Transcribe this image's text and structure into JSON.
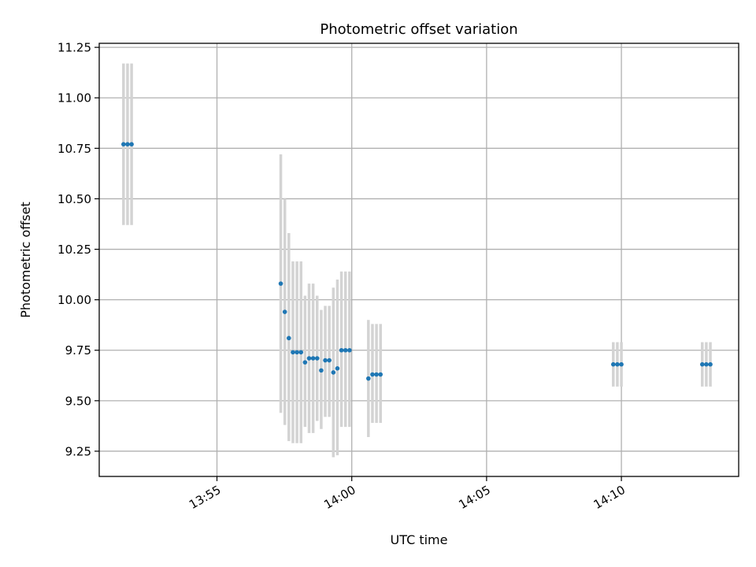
{
  "chart_data": {
    "type": "scatter",
    "title": "Photometric offset variation",
    "xlabel": "UTC time",
    "ylabel": "Photometric offset",
    "x_ticks": [
      "13:55",
      "14:00",
      "14:05",
      "14:10"
    ],
    "y_ticks": [
      "9.25",
      "9.50",
      "9.75",
      "10.00",
      "10.25",
      "10.50",
      "10.75",
      "11.00",
      "11.25"
    ],
    "xlim": [
      "13:50:38",
      "14:14:21"
    ],
    "ylim": [
      9.125,
      11.27
    ],
    "grid": true,
    "colors": {
      "point": "#1f77b4",
      "errorbar": "#d3d3d3",
      "grid": "#b0b0b0"
    },
    "series": [
      {
        "points": [
          {
            "x": "13:51:32",
            "y": 10.77,
            "err_low": 10.37,
            "err_high": 11.17
          },
          {
            "x": "13:51:41",
            "y": 10.77,
            "err_low": 10.37,
            "err_high": 11.17
          },
          {
            "x": "13:51:50",
            "y": 10.77,
            "err_low": 10.37,
            "err_high": 11.17
          },
          {
            "x": "13:57:22",
            "y": 10.08,
            "err_low": 9.44,
            "err_high": 10.72
          },
          {
            "x": "13:57:31",
            "y": 9.94,
            "err_low": 9.38,
            "err_high": 10.5
          },
          {
            "x": "13:57:40",
            "y": 9.81,
            "err_low": 9.3,
            "err_high": 10.33
          },
          {
            "x": "13:57:49",
            "y": 9.74,
            "err_low": 9.29,
            "err_high": 10.19
          },
          {
            "x": "13:57:58",
            "y": 9.74,
            "err_low": 9.29,
            "err_high": 10.19
          },
          {
            "x": "13:58:07",
            "y": 9.74,
            "err_low": 9.29,
            "err_high": 10.19
          },
          {
            "x": "13:58:16",
            "y": 9.69,
            "err_low": 9.37,
            "err_high": 10.02
          },
          {
            "x": "13:58:25",
            "y": 9.71,
            "err_low": 9.34,
            "err_high": 10.08
          },
          {
            "x": "13:58:34",
            "y": 9.71,
            "err_low": 9.34,
            "err_high": 10.08
          },
          {
            "x": "13:58:43",
            "y": 9.71,
            "err_low": 9.4,
            "err_high": 10.02
          },
          {
            "x": "13:58:52",
            "y": 9.65,
            "err_low": 9.36,
            "err_high": 9.95
          },
          {
            "x": "13:59:01",
            "y": 9.7,
            "err_low": 9.42,
            "err_high": 9.97
          },
          {
            "x": "13:59:10",
            "y": 9.7,
            "err_low": 9.42,
            "err_high": 9.97
          },
          {
            "x": "13:59:19",
            "y": 9.64,
            "err_low": 9.22,
            "err_high": 10.06
          },
          {
            "x": "13:59:28",
            "y": 9.66,
            "err_low": 9.23,
            "err_high": 10.1
          },
          {
            "x": "13:59:37",
            "y": 9.75,
            "err_low": 9.37,
            "err_high": 10.14
          },
          {
            "x": "13:59:46",
            "y": 9.75,
            "err_low": 9.37,
            "err_high": 10.14
          },
          {
            "x": "13:59:55",
            "y": 9.75,
            "err_low": 9.37,
            "err_high": 10.14
          },
          {
            "x": "14:00:37",
            "y": 9.61,
            "err_low": 9.32,
            "err_high": 9.9
          },
          {
            "x": "14:00:46",
            "y": 9.63,
            "err_low": 9.39,
            "err_high": 9.88
          },
          {
            "x": "14:00:55",
            "y": 9.63,
            "err_low": 9.39,
            "err_high": 9.88
          },
          {
            "x": "14:01:04",
            "y": 9.63,
            "err_low": 9.39,
            "err_high": 9.88
          },
          {
            "x": "14:09:42",
            "y": 9.68,
            "err_low": 9.57,
            "err_high": 9.79
          },
          {
            "x": "14:09:51",
            "y": 9.68,
            "err_low": 9.57,
            "err_high": 9.79
          },
          {
            "x": "14:10:00",
            "y": 9.68,
            "err_low": 9.57,
            "err_high": 9.79
          },
          {
            "x": "14:13:00",
            "y": 9.68,
            "err_low": 9.57,
            "err_high": 9.79
          },
          {
            "x": "14:13:09",
            "y": 9.68,
            "err_low": 9.57,
            "err_high": 9.79
          },
          {
            "x": "14:13:18",
            "y": 9.68,
            "err_low": 9.57,
            "err_high": 9.79
          }
        ]
      }
    ]
  }
}
